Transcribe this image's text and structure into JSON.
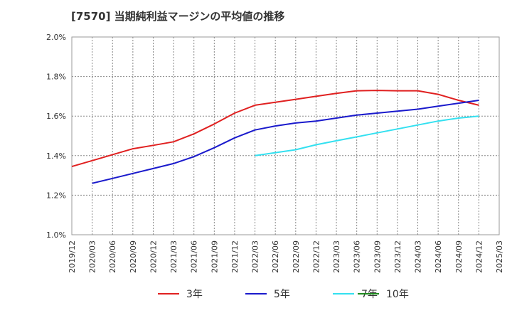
{
  "chart_data": {
    "type": "line",
    "title": "[7570]  当期純利益マージンの平均値の推移",
    "xlabel": "",
    "ylabel": "",
    "ylim": [
      1.0,
      2.0
    ],
    "y_ticks": [
      "1.0%",
      "1.2%",
      "1.4%",
      "1.6%",
      "1.8%",
      "2.0%"
    ],
    "x_ticks": [
      "2019/12",
      "2020/03",
      "2020/06",
      "2020/09",
      "2020/12",
      "2021/03",
      "2021/06",
      "2021/09",
      "2021/12",
      "2022/03",
      "2022/06",
      "2022/09",
      "2022/12",
      "2023/03",
      "2023/06",
      "2023/09",
      "2023/12",
      "2024/03",
      "2024/06",
      "2024/09",
      "2024/12",
      "2025/03"
    ],
    "grid": true,
    "legend_position": "bottom",
    "series": [
      {
        "name": "3年",
        "color": "#e02020",
        "points": [
          [
            "2019/12",
            1.345
          ],
          [
            "2020/03",
            1.375
          ],
          [
            "2020/06",
            1.405
          ],
          [
            "2020/09",
            1.435
          ],
          [
            "2020/12",
            1.452
          ],
          [
            "2021/03",
            1.47
          ],
          [
            "2021/06",
            1.51
          ],
          [
            "2021/09",
            1.56
          ],
          [
            "2021/12",
            1.615
          ],
          [
            "2022/03",
            1.655
          ],
          [
            "2022/06",
            1.67
          ],
          [
            "2022/09",
            1.685
          ],
          [
            "2022/12",
            1.7
          ],
          [
            "2023/03",
            1.715
          ],
          [
            "2023/06",
            1.728
          ],
          [
            "2023/09",
            1.73
          ],
          [
            "2023/12",
            1.728
          ],
          [
            "2024/03",
            1.728
          ],
          [
            "2024/06",
            1.71
          ],
          [
            "2024/09",
            1.68
          ],
          [
            "2024/12",
            1.655
          ]
        ]
      },
      {
        "name": "5年",
        "color": "#1a1acc",
        "points": [
          [
            "2020/03",
            1.26
          ],
          [
            "2020/06",
            1.285
          ],
          [
            "2020/09",
            1.31
          ],
          [
            "2020/12",
            1.335
          ],
          [
            "2021/03",
            1.36
          ],
          [
            "2021/06",
            1.395
          ],
          [
            "2021/09",
            1.44
          ],
          [
            "2021/12",
            1.49
          ],
          [
            "2022/03",
            1.53
          ],
          [
            "2022/06",
            1.55
          ],
          [
            "2022/09",
            1.565
          ],
          [
            "2022/12",
            1.575
          ],
          [
            "2023/03",
            1.59
          ],
          [
            "2023/06",
            1.605
          ],
          [
            "2023/09",
            1.615
          ],
          [
            "2023/12",
            1.625
          ],
          [
            "2024/03",
            1.635
          ],
          [
            "2024/06",
            1.65
          ],
          [
            "2024/09",
            1.665
          ],
          [
            "2024/12",
            1.68
          ]
        ]
      },
      {
        "name": "7年",
        "color": "#33e0f0",
        "points": [
          [
            "2022/03",
            1.4
          ],
          [
            "2022/06",
            1.415
          ],
          [
            "2022/09",
            1.43
          ],
          [
            "2022/12",
            1.455
          ],
          [
            "2023/03",
            1.475
          ],
          [
            "2023/06",
            1.495
          ],
          [
            "2023/09",
            1.515
          ],
          [
            "2023/12",
            1.535
          ],
          [
            "2024/03",
            1.555
          ],
          [
            "2024/06",
            1.575
          ],
          [
            "2024/09",
            1.59
          ],
          [
            "2024/12",
            1.6
          ]
        ]
      },
      {
        "name": "10年",
        "color": "#1e8a1e",
        "points": []
      }
    ]
  }
}
